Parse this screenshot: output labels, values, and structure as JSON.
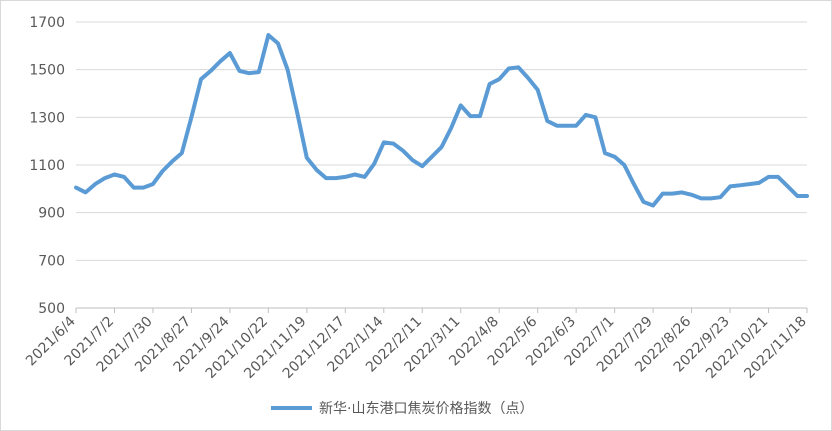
{
  "chart_data": {
    "type": "line",
    "title": "",
    "xlabel": "",
    "ylabel": "",
    "ylim": [
      500,
      1700
    ],
    "y_ticks": [
      500,
      700,
      900,
      1100,
      1300,
      1500,
      1700
    ],
    "grid": "horizontal",
    "legend_position": "bottom",
    "series_color": "#5B9BD5",
    "x_tick_labels": [
      "2021/6/4",
      "2021/7/2",
      "2021/7/30",
      "2021/8/27",
      "2021/9/24",
      "2021/10/22",
      "2021/11/19",
      "2021/12/17",
      "2022/1/14",
      "2022/2/11",
      "2022/3/11",
      "2022/4/8",
      "2022/5/6",
      "2022/6/3",
      "2022/7/1",
      "2022/7/29",
      "2022/8/26",
      "2022/9/23",
      "2022/10/21",
      "2022/11/18"
    ],
    "series": [
      {
        "name": "新华·山东港口焦炭价格指数（点）",
        "x": [
          "2021/6/4",
          "2021/6/11",
          "2021/6/18",
          "2021/6/25",
          "2021/7/2",
          "2021/7/9",
          "2021/7/16",
          "2021/7/23",
          "2021/7/30",
          "2021/8/6",
          "2021/8/13",
          "2021/8/20",
          "2021/8/27",
          "2021/9/3",
          "2021/9/10",
          "2021/9/17",
          "2021/9/24",
          "2021/10/1",
          "2021/10/8",
          "2021/10/15",
          "2021/10/22",
          "2021/10/29",
          "2021/11/5",
          "2021/11/12",
          "2021/11/19",
          "2021/11/26",
          "2021/12/3",
          "2021/12/10",
          "2021/12/17",
          "2021/12/24",
          "2021/12/31",
          "2022/1/7",
          "2022/1/14",
          "2022/1/21",
          "2022/1/28",
          "2022/2/4",
          "2022/2/11",
          "2022/2/18",
          "2022/2/25",
          "2022/3/4",
          "2022/3/11",
          "2022/3/18",
          "2022/3/25",
          "2022/4/1",
          "2022/4/8",
          "2022/4/15",
          "2022/4/22",
          "2022/4/29",
          "2022/5/6",
          "2022/5/13",
          "2022/5/20",
          "2022/5/27",
          "2022/6/3",
          "2022/6/10",
          "2022/6/17",
          "2022/6/24",
          "2022/7/1",
          "2022/7/8",
          "2022/7/15",
          "2022/7/22",
          "2022/7/29",
          "2022/8/5",
          "2022/8/12",
          "2022/8/19",
          "2022/8/26",
          "2022/9/2",
          "2022/9/9",
          "2022/9/16",
          "2022/9/23",
          "2022/9/30",
          "2022/10/7",
          "2022/10/14",
          "2022/10/21",
          "2022/10/28",
          "2022/11/4",
          "2022/11/11",
          "2022/11/18"
        ],
        "values": [
          1005,
          985,
          1020,
          1045,
          1060,
          1050,
          1005,
          1005,
          1020,
          1075,
          1115,
          1150,
          1300,
          1460,
          1495,
          1535,
          1570,
          1495,
          1485,
          1490,
          1645,
          1610,
          1500,
          1320,
          1130,
          1080,
          1045,
          1045,
          1050,
          1060,
          1050,
          1105,
          1195,
          1190,
          1160,
          1120,
          1095,
          1135,
          1175,
          1255,
          1350,
          1305,
          1305,
          1440,
          1460,
          1505,
          1510,
          1465,
          1415,
          1285,
          1265,
          1265,
          1265,
          1310,
          1300,
          1150,
          1135,
          1100,
          1020,
          945,
          930,
          980,
          980,
          985,
          975,
          960,
          960,
          965,
          1010,
          1015,
          1020,
          1025,
          1050,
          1050,
          1010,
          970,
          970
        ]
      }
    ]
  }
}
